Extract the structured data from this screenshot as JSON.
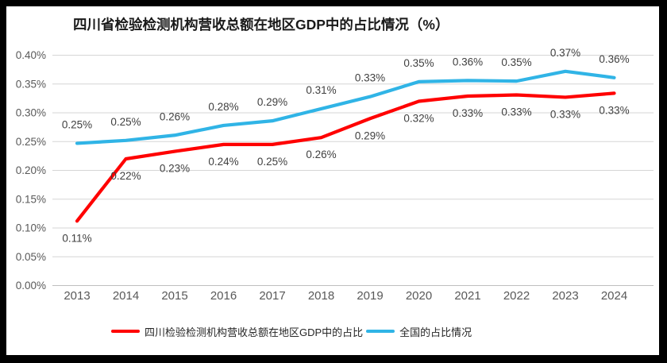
{
  "colors": {
    "frame": "#000000",
    "background": "#ffffff",
    "title_text": "#1a1a1a",
    "axis_text": "#595959",
    "data_label_text": "#3f3f3f",
    "gridline": "#d6d6d6",
    "axis_line": "#bfbfbf",
    "sichuan_series": "#ff0000",
    "national_series": "#30b4e6"
  },
  "chart_data": {
    "type": "line",
    "title": "四川省检验检测机构营收总额在地区GDP中的占比情况（%）",
    "categories": [
      "2013",
      "2014",
      "2015",
      "2016",
      "2017",
      "2018",
      "2019",
      "2020",
      "2021",
      "2022",
      "2023",
      "2024"
    ],
    "series": [
      {
        "name": "四川检验检测机构营收总额在地区GDP中的占比",
        "color": "#ff0000",
        "values": [
          0.112,
          0.22,
          0.233,
          0.245,
          0.245,
          0.257,
          0.29,
          0.32,
          0.329,
          0.331,
          0.327,
          0.334
        ],
        "point_labels": [
          "0.11%",
          "0.22%",
          "0.23%",
          "0.24%",
          "0.25%",
          "0.26%",
          "0.29%",
          "0.32%",
          "0.33%",
          "0.33%",
          "0.33%",
          "0.33%"
        ],
        "label_position": "below"
      },
      {
        "name": "全国的占比情况",
        "color": "#30b4e6",
        "values": [
          0.247,
          0.252,
          0.261,
          0.278,
          0.286,
          0.307,
          0.328,
          0.354,
          0.356,
          0.355,
          0.372,
          0.361
        ],
        "point_labels": [
          "0.25%",
          "0.25%",
          "0.26%",
          "0.28%",
          "0.29%",
          "0.31%",
          "0.33%",
          "0.35%",
          "0.36%",
          "0.35%",
          "0.37%",
          "0.36%"
        ],
        "label_position": "above"
      }
    ],
    "y_axis": {
      "tick_labels": [
        "0.00%",
        "0.05%",
        "0.10%",
        "0.15%",
        "0.20%",
        "0.25%",
        "0.30%",
        "0.35%",
        "0.40%"
      ],
      "min": 0,
      "max": 0.4,
      "step": 0.05,
      "unit": "%"
    },
    "x_axis": {
      "label": ""
    },
    "grid": true,
    "legend_position": "bottom"
  }
}
